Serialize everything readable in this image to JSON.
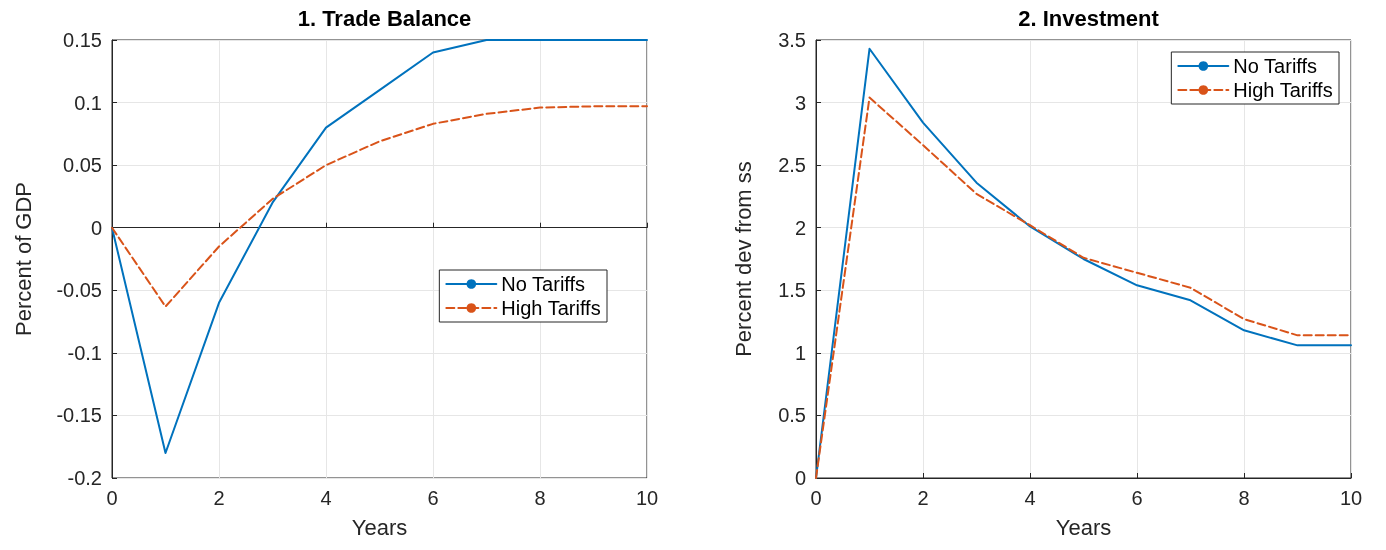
{
  "chart_data": [
    {
      "type": "line",
      "title": "1. Trade Balance",
      "xlabel": "Years",
      "ylabel": "Percent of GDP",
      "x": [
        0,
        1,
        2,
        3,
        4,
        5,
        6,
        7,
        8,
        9,
        10
      ],
      "xlim": [
        0,
        10
      ],
      "xticks": [
        0,
        2,
        4,
        6,
        8,
        10
      ],
      "ylim": [
        -0.2,
        0.15
      ],
      "yticks": [
        -0.2,
        -0.15,
        -0.1,
        -0.05,
        0,
        0.05,
        0.1,
        0.15
      ],
      "grid": true,
      "legend": "right",
      "series": [
        {
          "name": "No Tariffs",
          "color": "#0072bd",
          "line_style": "solid",
          "values": [
            0,
            -0.18,
            -0.06,
            0.02,
            0.08,
            0.11,
            0.14,
            0.15,
            0.15,
            0.15,
            0.15
          ]
        },
        {
          "name": "High Tariffs",
          "color": "#d95319",
          "line_style": "dashed",
          "values": [
            0,
            -0.063,
            -0.015,
            0.023,
            0.05,
            0.069,
            0.083,
            0.091,
            0.096,
            0.097,
            0.097
          ]
        }
      ]
    },
    {
      "type": "line",
      "title": "2. Investment",
      "xlabel": "Years",
      "ylabel": "Percent dev from ss",
      "x": [
        0,
        1,
        2,
        3,
        4,
        5,
        6,
        7,
        8,
        9,
        10
      ],
      "xlim": [
        0,
        10
      ],
      "xticks": [
        0,
        2,
        4,
        6,
        8,
        10
      ],
      "ylim": [
        0,
        3.5
      ],
      "yticks": [
        0,
        0.5,
        1,
        1.5,
        2,
        2.5,
        3,
        3.5
      ],
      "grid": true,
      "legend": "top right",
      "series": [
        {
          "name": "No Tariffs",
          "color": "#0072bd",
          "line_style": "solid",
          "values": [
            0,
            3.43,
            2.84,
            2.36,
            2.01,
            1.75,
            1.54,
            1.42,
            1.18,
            1.06,
            1.06
          ]
        },
        {
          "name": "High Tariffs",
          "color": "#d95319",
          "line_style": "dashed",
          "values": [
            0,
            3.04,
            2.66,
            2.27,
            2.02,
            1.76,
            1.64,
            1.52,
            1.27,
            1.14,
            1.14
          ]
        }
      ]
    }
  ]
}
